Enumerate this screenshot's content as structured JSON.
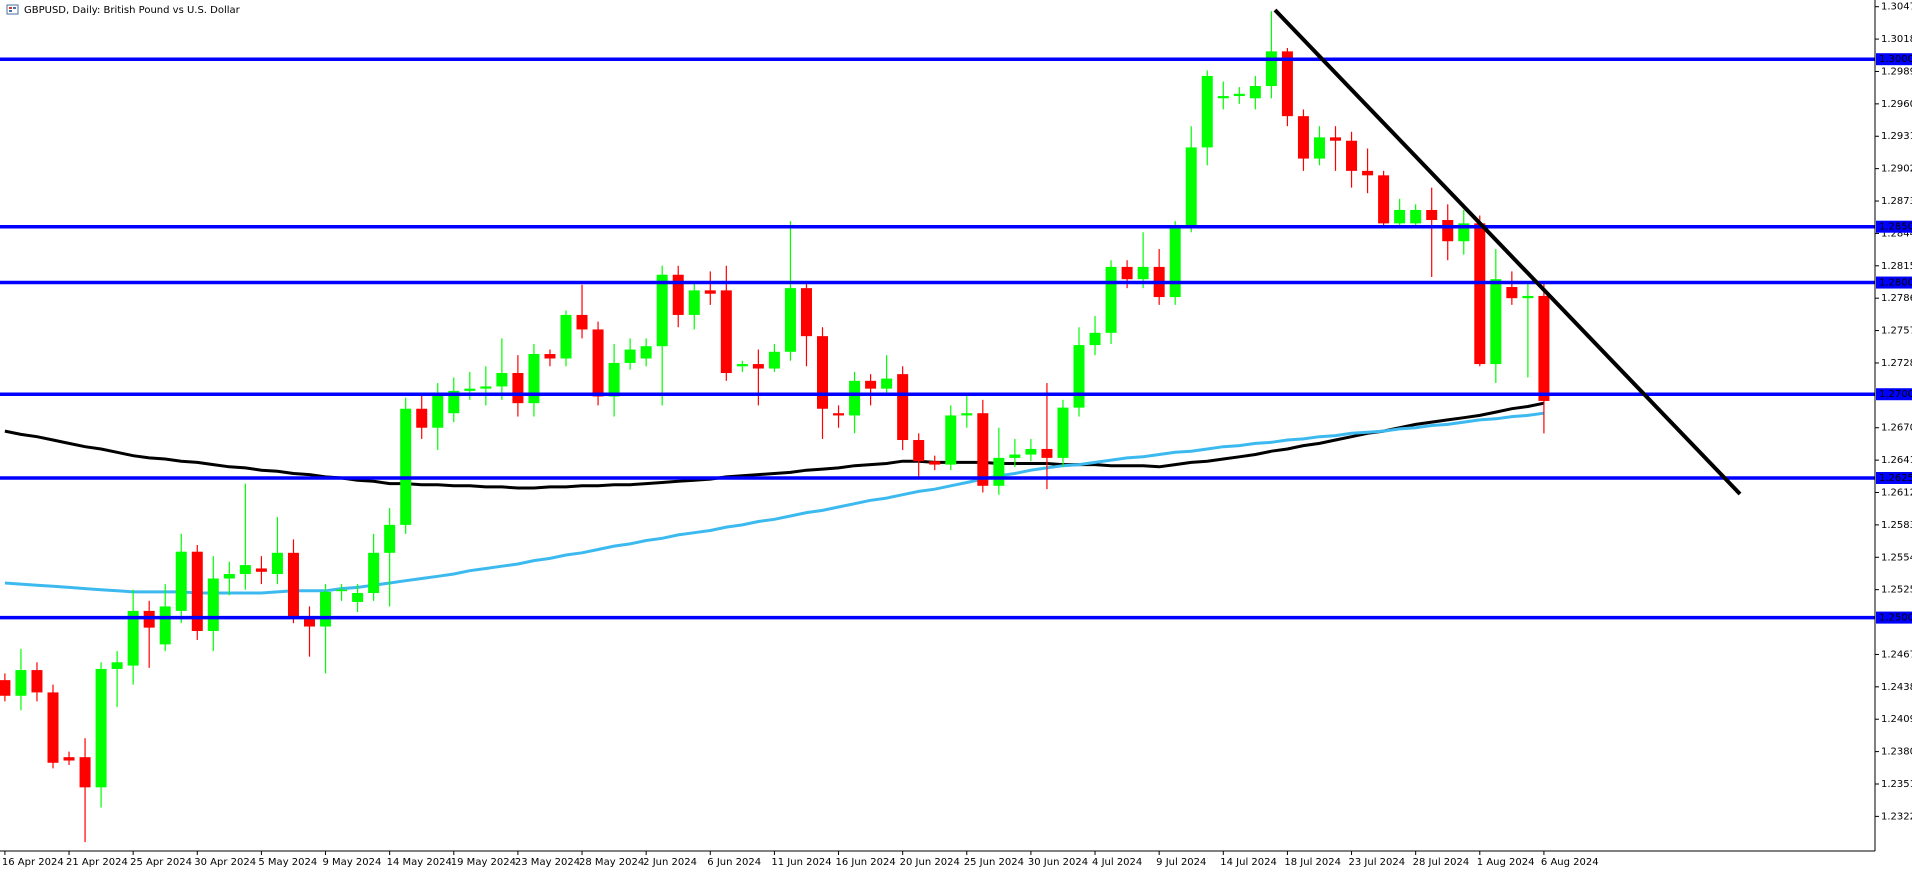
{
  "chart_data": {
    "type": "candlestick",
    "title": "GBPUSD, Daily:  British Pound vs U.S. Dollar",
    "up_color": "#00ff00",
    "down_color": "#ff0000",
    "ylim": [
      1.2291,
      1.3053
    ],
    "yticks": [
      {
        "value": 1.3047,
        "label": "1.30470"
      },
      {
        "value": 1.3018,
        "label": "1.30180"
      },
      {
        "value": 1.2989,
        "label": "1.29890"
      },
      {
        "value": 1.296,
        "label": "1.29600"
      },
      {
        "value": 1.2931,
        "label": "1.29310"
      },
      {
        "value": 1.2902,
        "label": "1.29020"
      },
      {
        "value": 1.2873,
        "label": "1.28730"
      },
      {
        "value": 1.2844,
        "label": "1.28440"
      },
      {
        "value": 1.2815,
        "label": "1.28150"
      },
      {
        "value": 1.2786,
        "label": "1.27860"
      },
      {
        "value": 1.2757,
        "label": "1.27570"
      },
      {
        "value": 1.2728,
        "label": "1.27280"
      },
      {
        "value": 1.267,
        "label": "1.26700"
      },
      {
        "value": 1.2641,
        "label": "1.26410"
      },
      {
        "value": 1.2612,
        "label": "1.26120"
      },
      {
        "value": 1.2583,
        "label": "1.25830"
      },
      {
        "value": 1.2554,
        "label": "1.25540"
      },
      {
        "value": 1.2525,
        "label": "1.25250"
      },
      {
        "value": 1.2467,
        "label": "1.24670"
      },
      {
        "value": 1.2438,
        "label": "1.24380"
      },
      {
        "value": 1.2409,
        "label": "1.24090"
      },
      {
        "value": 1.238,
        "label": "1.23800"
      },
      {
        "value": 1.2351,
        "label": "1.23510"
      },
      {
        "value": 1.2322,
        "label": "1.23220"
      }
    ],
    "levels_color": "#0000ff",
    "levels": [
      {
        "value": 1.3,
        "label": "1.30000"
      },
      {
        "value": 1.285,
        "label": "1.28500"
      },
      {
        "value": 1.28,
        "label": "1.28000"
      },
      {
        "value": 1.27,
        "label": "1.27000"
      },
      {
        "value": 1.2625,
        "label": "1.26250"
      },
      {
        "value": 1.25,
        "label": "1.25000"
      }
    ],
    "categories": [
      "16 Apr 2024",
      null,
      null,
      null,
      "21 Apr 2024",
      null,
      null,
      null,
      "25 Apr 2024",
      null,
      null,
      null,
      "30 Apr 2024",
      null,
      null,
      null,
      "5 May 2024",
      null,
      null,
      null,
      "9 May 2024",
      null,
      null,
      null,
      "14 May 2024",
      null,
      null,
      null,
      "19 May 2024",
      null,
      null,
      null,
      "23 May 2024",
      null,
      null,
      null,
      "28 May 2024",
      null,
      null,
      null,
      "2 Jun 2024",
      null,
      null,
      null,
      "6 Jun 2024",
      null,
      null,
      null,
      "11 Jun 2024",
      null,
      null,
      null,
      "16 Jun 2024",
      null,
      null,
      null,
      "20 Jun 2024",
      null,
      null,
      null,
      "25 Jun 2024",
      null,
      null,
      null,
      "30 Jun 2024",
      null,
      null,
      null,
      "4 Jul 2024",
      null,
      null,
      null,
      "9 Jul 2024",
      null,
      null,
      null,
      "14 Jul 2024",
      null,
      null,
      null,
      "18 Jul 2024",
      null,
      null,
      null,
      "23 Jul 2024",
      null,
      null,
      null,
      "28 Jul 2024",
      null,
      null,
      null,
      "1 Aug 2024",
      null,
      null,
      null,
      "6 Aug 2024"
    ],
    "open": [
      1.2444,
      1.243,
      1.2453,
      1.2433,
      1.2375,
      1.2375,
      1.2348,
      1.2454,
      1.2457,
      1.2506,
      1.2476,
      1.2506,
      1.2559,
      1.2488,
      1.2535,
      1.2539,
      1.2544,
      1.2539,
      1.2558,
      1.2501,
      1.2492,
      1.2524,
      1.2514,
      1.2522,
      1.2558,
      1.2583,
      1.2687,
      1.267,
      1.2683,
      1.2703,
      1.2705,
      1.2707,
      1.2719,
      1.2692,
      1.2736,
      1.2732,
      1.2771,
      1.2758,
      1.2698,
      1.2728,
      1.2732,
      1.2743,
      1.2807,
      1.2771,
      1.2793,
      1.2793,
      1.2725,
      1.2727,
      1.2723,
      1.2738,
      1.2795,
      1.2752,
      1.2683,
      1.2681,
      1.2712,
      1.2705,
      1.2718,
      1.2659,
      1.264,
      1.2637,
      1.2681,
      1.2683,
      1.2618,
      1.2643,
      1.2646,
      1.2651,
      1.2643,
      1.2688,
      1.2744,
      1.2755,
      1.2814,
      1.2803,
      1.2814,
      1.2787,
      1.285,
      1.2921,
      1.2965,
      1.2967,
      1.2965,
      1.2976,
      1.3007,
      1.2949,
      1.2911,
      1.293,
      1.2927,
      1.29,
      1.2896,
      1.2853,
      1.2853,
      1.2865,
      1.2856,
      1.2837,
      1.2853,
      1.2727,
      1.2796,
      1.2786,
      1.2788
    ],
    "high": [
      1.245,
      1.2472,
      1.246,
      1.244,
      1.238,
      1.2392,
      1.246,
      1.247,
      1.2525,
      1.2515,
      1.253,
      1.2575,
      1.2565,
      1.2555,
      1.255,
      1.262,
      1.2555,
      1.259,
      1.257,
      1.251,
      1.253,
      1.253,
      1.253,
      1.2575,
      1.2598,
      1.2697,
      1.27,
      1.271,
      1.2715,
      1.272,
      1.2725,
      1.275,
      1.2735,
      1.2745,
      1.274,
      1.2775,
      1.2798,
      1.2765,
      1.2745,
      1.275,
      1.275,
      1.2815,
      1.2815,
      1.28,
      1.281,
      1.2815,
      1.273,
      1.274,
      1.2745,
      1.2855,
      1.28,
      1.276,
      1.269,
      1.272,
      1.2718,
      1.2735,
      1.2725,
      1.2665,
      1.2645,
      1.269,
      1.27,
      1.2695,
      1.267,
      1.266,
      1.266,
      1.271,
      1.2695,
      1.276,
      1.277,
      1.282,
      1.282,
      1.2845,
      1.283,
      1.2855,
      1.294,
      1.299,
      1.298,
      1.2975,
      1.2985,
      1.3043,
      1.301,
      1.2955,
      1.294,
      1.294,
      1.2935,
      1.292,
      1.29,
      1.2875,
      1.287,
      1.2885,
      1.287,
      1.2865,
      1.286,
      1.283,
      1.281,
      1.28,
      1.28
    ],
    "low": [
      1.2425,
      1.2417,
      1.2425,
      1.2365,
      1.2368,
      1.2299,
      1.233,
      1.242,
      1.244,
      1.2455,
      1.247,
      1.2495,
      1.248,
      1.247,
      1.252,
      1.2525,
      1.253,
      1.253,
      1.2495,
      1.2465,
      1.245,
      1.2515,
      1.2505,
      1.2515,
      1.251,
      1.2575,
      1.266,
      1.265,
      1.2675,
      1.2695,
      1.269,
      1.2695,
      1.268,
      1.268,
      1.2725,
      1.2725,
      1.275,
      1.269,
      1.268,
      1.2722,
      1.2725,
      1.269,
      1.276,
      1.2758,
      1.278,
      1.2712,
      1.272,
      1.269,
      1.272,
      1.273,
      1.2725,
      1.266,
      1.267,
      1.2665,
      1.269,
      1.27,
      1.265,
      1.2625,
      1.2632,
      1.2632,
      1.267,
      1.2612,
      1.261,
      1.2635,
      1.264,
      1.2615,
      1.2635,
      1.268,
      1.2735,
      1.2745,
      1.2795,
      1.2795,
      1.278,
      1.278,
      1.2845,
      1.2905,
      1.2955,
      1.296,
      1.2955,
      1.2965,
      1.294,
      1.29,
      1.2905,
      1.29,
      1.2885,
      1.288,
      1.285,
      1.285,
      1.285,
      1.2805,
      1.282,
      1.2825,
      1.2725,
      1.271,
      1.278,
      1.2715,
      1.2665
    ],
    "close": [
      1.243,
      1.2453,
      1.2433,
      1.237,
      1.2372,
      1.2348,
      1.2454,
      1.246,
      1.2506,
      1.2491,
      1.251,
      1.2559,
      1.2488,
      1.2535,
      1.2539,
      1.2547,
      1.2541,
      1.2558,
      1.2501,
      1.2492,
      1.2523,
      1.2525,
      1.2522,
      1.2558,
      1.2583,
      1.2687,
      1.267,
      1.27,
      1.2703,
      1.2705,
      1.2707,
      1.2719,
      1.2692,
      1.2736,
      1.2732,
      1.2771,
      1.2758,
      1.2698,
      1.2728,
      1.274,
      1.2743,
      1.2807,
      1.2771,
      1.2793,
      1.279,
      1.2719,
      1.2727,
      1.2723,
      1.2738,
      1.2795,
      1.2752,
      1.2687,
      1.2681,
      1.2712,
      1.2705,
      1.2714,
      1.2659,
      1.264,
      1.2637,
      1.2681,
      1.2683,
      1.2618,
      1.2643,
      1.2646,
      1.2651,
      1.2643,
      1.2688,
      1.2744,
      1.2755,
      1.2814,
      1.2803,
      1.2814,
      1.2787,
      1.285,
      1.2921,
      1.2985,
      1.2967,
      1.2969,
      1.2976,
      1.3007,
      1.2949,
      1.2911,
      1.293,
      1.2927,
      1.29,
      1.2896,
      1.2853,
      1.2865,
      1.2865,
      1.2856,
      1.2837,
      1.2853,
      1.2727,
      1.2803,
      1.2786,
      1.2788,
      1.2694
    ],
    "moving_averages": [
      {
        "color": "#000000",
        "values": [
          1.2667,
          1.2664,
          1.2662,
          1.2659,
          1.2656,
          1.2653,
          1.2651,
          1.2648,
          1.2645,
          1.2643,
          1.2642,
          1.264,
          1.2639,
          1.2637,
          1.2635,
          1.2634,
          1.2632,
          1.2631,
          1.2629,
          1.2628,
          1.2626,
          1.2625,
          1.2623,
          1.2622,
          1.262,
          1.262,
          1.2619,
          1.2619,
          1.2618,
          1.2618,
          1.2617,
          1.2617,
          1.2616,
          1.2616,
          1.2617,
          1.2617,
          1.2618,
          1.2618,
          1.2619,
          1.2619,
          1.262,
          1.2621,
          1.2622,
          1.2623,
          1.2624,
          1.2626,
          1.2627,
          1.2628,
          1.2629,
          1.263,
          1.2632,
          1.2633,
          1.2634,
          1.2636,
          1.2637,
          1.2638,
          1.264,
          1.264,
          1.2639,
          1.2639,
          1.2639,
          1.2639,
          1.2638,
          1.2638,
          1.2638,
          1.2638,
          1.2637,
          1.2637,
          1.2637,
          1.2636,
          1.2636,
          1.2636,
          1.2635,
          1.2637,
          1.2639,
          1.264,
          1.2642,
          1.2644,
          1.2646,
          1.2649,
          1.2651,
          1.2654,
          1.2656,
          1.2659,
          1.2662,
          1.2665,
          1.2667,
          1.267,
          1.2673,
          1.2675,
          1.2677,
          1.2679,
          1.2681,
          1.2684,
          1.2687,
          1.2689,
          1.2692
        ]
      },
      {
        "color": "#3cbaf0",
        "values": [
          1.2531,
          1.253,
          1.2529,
          1.2528,
          1.2527,
          1.2526,
          1.2525,
          1.2524,
          1.2523,
          1.2523,
          1.2523,
          1.2523,
          1.2522,
          1.2522,
          1.2522,
          1.2522,
          1.2522,
          1.2523,
          1.2524,
          1.2524,
          1.2524,
          1.2526,
          1.2527,
          1.2529,
          1.2531,
          1.2533,
          1.2535,
          1.2537,
          1.2539,
          1.2542,
          1.2544,
          1.2546,
          1.2548,
          1.2551,
          1.2553,
          1.2556,
          1.2558,
          1.2561,
          1.2564,
          1.2566,
          1.2569,
          1.2571,
          1.2574,
          1.2576,
          1.2578,
          1.2581,
          1.2583,
          1.2586,
          1.2588,
          1.2591,
          1.2594,
          1.2596,
          1.2599,
          1.2602,
          1.2605,
          1.2607,
          1.261,
          1.2613,
          1.2615,
          1.2618,
          1.2621,
          1.2624,
          1.2627,
          1.2629,
          1.2632,
          1.2634,
          1.2636,
          1.2637,
          1.2639,
          1.2641,
          1.2643,
          1.2644,
          1.2646,
          1.2648,
          1.2649,
          1.2651,
          1.2653,
          1.2654,
          1.2656,
          1.2657,
          1.2659,
          1.266,
          1.2662,
          1.2663,
          1.2665,
          1.2666,
          1.2667,
          1.2669,
          1.267,
          1.2672,
          1.2673,
          1.2675,
          1.2677,
          1.2678,
          1.268,
          1.2681,
          1.2683
        ]
      }
    ]
  }
}
